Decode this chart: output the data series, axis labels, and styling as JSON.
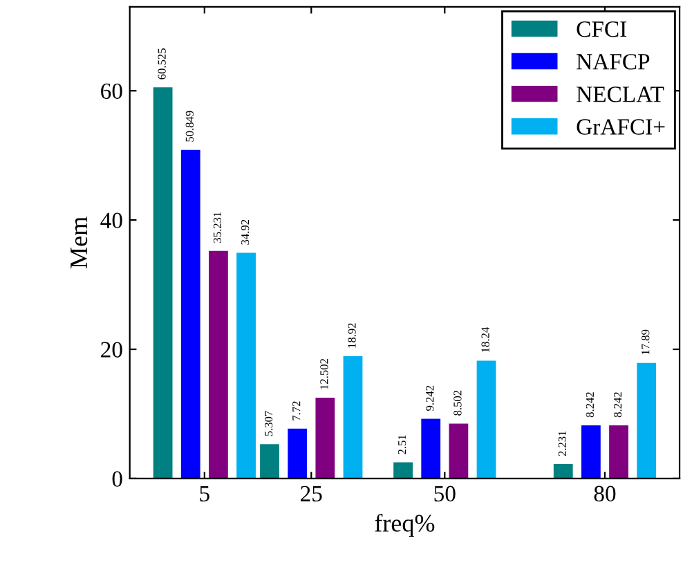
{
  "chart_data": {
    "type": "bar",
    "xlabel": "freq%",
    "ylabel": "Mem",
    "x": [
      5,
      25,
      50,
      80
    ],
    "series": [
      {
        "name": "CFCI",
        "color": "#008080",
        "values": [
          60.525,
          5.307,
          2.51,
          2.231
        ]
      },
      {
        "name": "NAFCP",
        "color": "#0000ff",
        "values": [
          50.849,
          7.72,
          9.242,
          8.242
        ]
      },
      {
        "name": "NECLAT",
        "color": "#800080",
        "values": [
          35.231,
          12.502,
          8.502,
          8.242
        ]
      },
      {
        "name": "GrAFCI+",
        "color": "#00b0f0",
        "values": [
          34.92,
          18.92,
          18.24,
          17.89
        ]
      }
    ],
    "xlim": [
      -9,
      94
    ],
    "xticks": [
      5,
      25,
      50,
      80
    ],
    "ylim": [
      0,
      73
    ],
    "yticks": [
      0,
      20,
      40,
      60
    ],
    "data_labels": true,
    "grid": false,
    "legend": "top right"
  }
}
